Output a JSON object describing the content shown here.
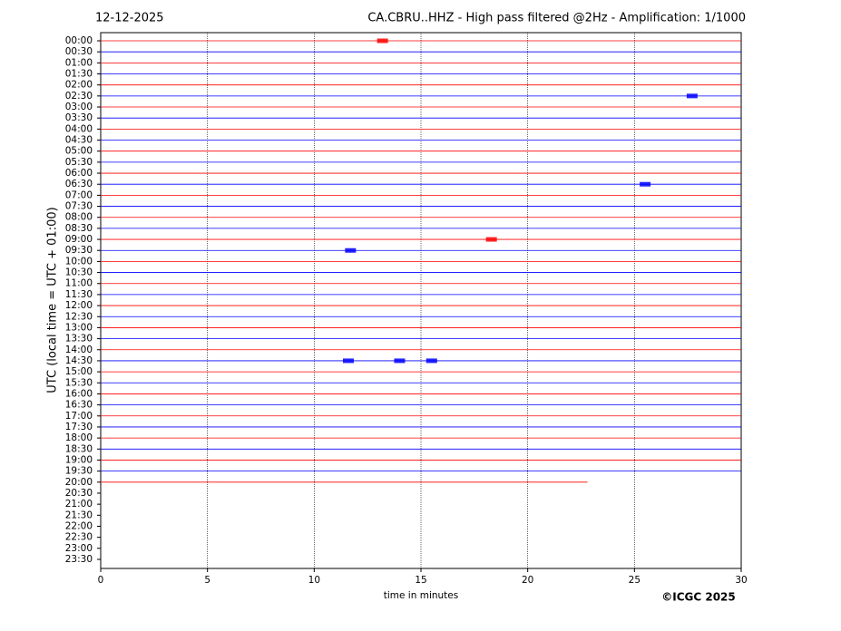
{
  "chart_data": {
    "type": "helicorder",
    "date": "12-12-2025",
    "title": "CA.CBRU..HHZ - High pass filtered @2Hz - Amplification: 1/1000",
    "ylabel": "UTC (local time = UTC + 01:00)",
    "xlabel": "time in minutes",
    "credit": "©ICGC 2025",
    "categories": [
      "00:00",
      "00:30",
      "01:00",
      "01:30",
      "02:00",
      "02:30",
      "03:00",
      "03:30",
      "04:00",
      "04:30",
      "05:00",
      "05:30",
      "06:00",
      "06:30",
      "07:00",
      "07:30",
      "08:00",
      "08:30",
      "09:00",
      "09:30",
      "10:00",
      "10:30",
      "11:00",
      "11:30",
      "12:00",
      "12:30",
      "13:00",
      "13:30",
      "14:00",
      "14:30",
      "15:00",
      "15:30",
      "16:00",
      "16:30",
      "17:00",
      "17:30",
      "18:00",
      "18:30",
      "19:00",
      "19:30",
      "20:00",
      "20:30",
      "21:00",
      "21:30",
      "22:00",
      "22:30",
      "23:00",
      "23:30"
    ],
    "xlim": [
      0,
      30
    ],
    "xticks": [
      0,
      5,
      10,
      15,
      20,
      25,
      30
    ],
    "grid": true,
    "trace_colors": [
      "#ff0000",
      "#0000ff"
    ],
    "trace_ends": [
      30,
      30,
      30,
      30,
      30,
      30,
      30,
      30,
      30,
      30,
      30,
      30,
      30,
      30,
      30,
      30,
      30,
      30,
      30,
      30,
      30,
      30,
      30,
      30,
      30,
      30,
      30,
      30,
      30,
      30,
      30,
      30,
      30,
      30,
      30,
      30,
      30,
      30,
      30,
      30,
      22.8
    ],
    "events": {
      "rows": [
        0,
        5,
        13,
        18,
        19,
        29,
        29,
        29
      ],
      "minutes": [
        13.2,
        27.7,
        25.5,
        18.3,
        11.7,
        14.0,
        11.6,
        15.5
      ]
    }
  }
}
